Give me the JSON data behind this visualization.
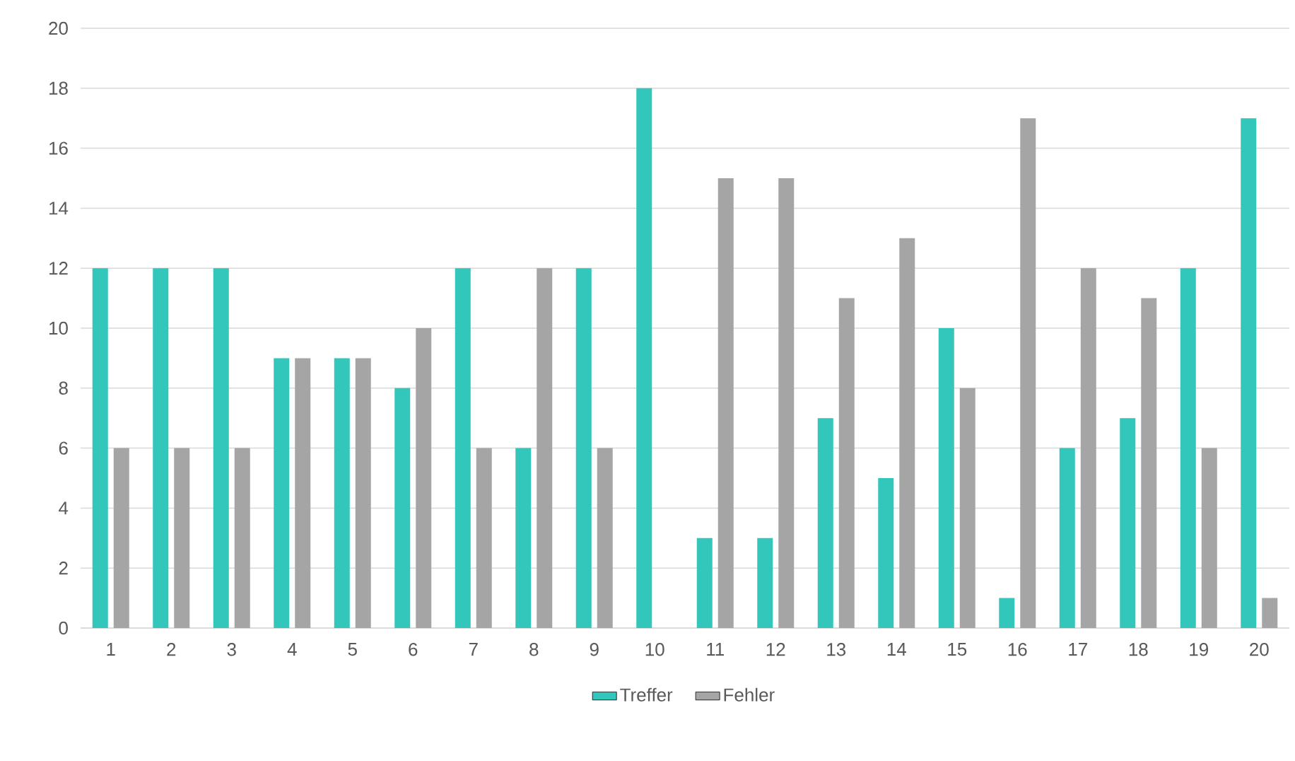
{
  "chart_data": {
    "type": "bar",
    "categories": [
      "1",
      "2",
      "3",
      "4",
      "5",
      "6",
      "7",
      "8",
      "9",
      "10",
      "11",
      "12",
      "13",
      "14",
      "15",
      "16",
      "17",
      "18",
      "19",
      "20"
    ],
    "series": [
      {
        "name": "Treffer",
        "color": "#33c6bb",
        "values": [
          12,
          12,
          12,
          9,
          9,
          8,
          12,
          6,
          12,
          18,
          3,
          3,
          7,
          5,
          10,
          1,
          6,
          7,
          12,
          17
        ]
      },
      {
        "name": "Fehler",
        "color": "#a5a5a5",
        "values": [
          6,
          6,
          6,
          9,
          9,
          10,
          6,
          12,
          6,
          0,
          15,
          15,
          11,
          13,
          8,
          17,
          12,
          11,
          6,
          1
        ]
      }
    ],
    "ylim": [
      0,
      20
    ],
    "yticks": [
      0,
      2,
      4,
      6,
      8,
      10,
      12,
      14,
      16,
      18,
      20
    ],
    "grid": "y",
    "legend": "bottom"
  }
}
